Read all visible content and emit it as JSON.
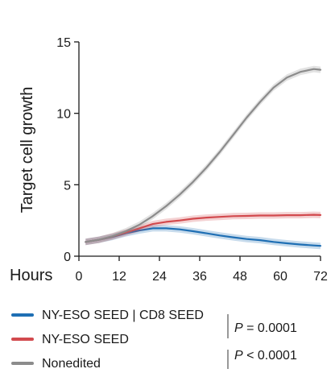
{
  "chart_data": {
    "type": "line",
    "xlabel": "Hours",
    "ylabel": "Target cell growth",
    "xlim": [
      0,
      72
    ],
    "ylim": [
      0,
      15
    ],
    "xticks": [
      "0",
      "12",
      "24",
      "36",
      "48",
      "60",
      "72"
    ],
    "yticks": [
      "0",
      "5",
      "10",
      "15"
    ],
    "grid": false,
    "legend_position": "bottom-left",
    "x": [
      2,
      6,
      10,
      14,
      18,
      22,
      26,
      30,
      34,
      38,
      42,
      46,
      50,
      54,
      58,
      62,
      66,
      70,
      72
    ],
    "series": [
      {
        "name": "NY-ESO SEED | CD8 SEED",
        "color": "#1f6fb4",
        "values": [
          1.0,
          1.15,
          1.35,
          1.6,
          1.8,
          1.95,
          1.95,
          1.88,
          1.75,
          1.6,
          1.45,
          1.32,
          1.2,
          1.12,
          1.0,
          0.9,
          0.82,
          0.75,
          0.72
        ]
      },
      {
        "name": "NY-ESO SEED",
        "color": "#d24a4e",
        "values": [
          1.0,
          1.15,
          1.38,
          1.65,
          1.95,
          2.25,
          2.4,
          2.5,
          2.62,
          2.7,
          2.75,
          2.8,
          2.82,
          2.85,
          2.85,
          2.87,
          2.87,
          2.9,
          2.88
        ]
      },
      {
        "name": "Nonedited",
        "color": "#8c8c8c",
        "values": [
          1.0,
          1.15,
          1.4,
          1.75,
          2.2,
          2.8,
          3.5,
          4.3,
          5.2,
          6.2,
          7.3,
          8.5,
          9.7,
          10.8,
          11.8,
          12.5,
          12.9,
          13.1,
          13.05
        ]
      }
    ],
    "annotations": [
      {
        "prefix": "P",
        "text": " = 0.0001"
      },
      {
        "prefix": "P",
        "text": " < 0.0001"
      }
    ]
  },
  "colors": {
    "axis": "#1a1a1a",
    "bracket": "#555555"
  }
}
